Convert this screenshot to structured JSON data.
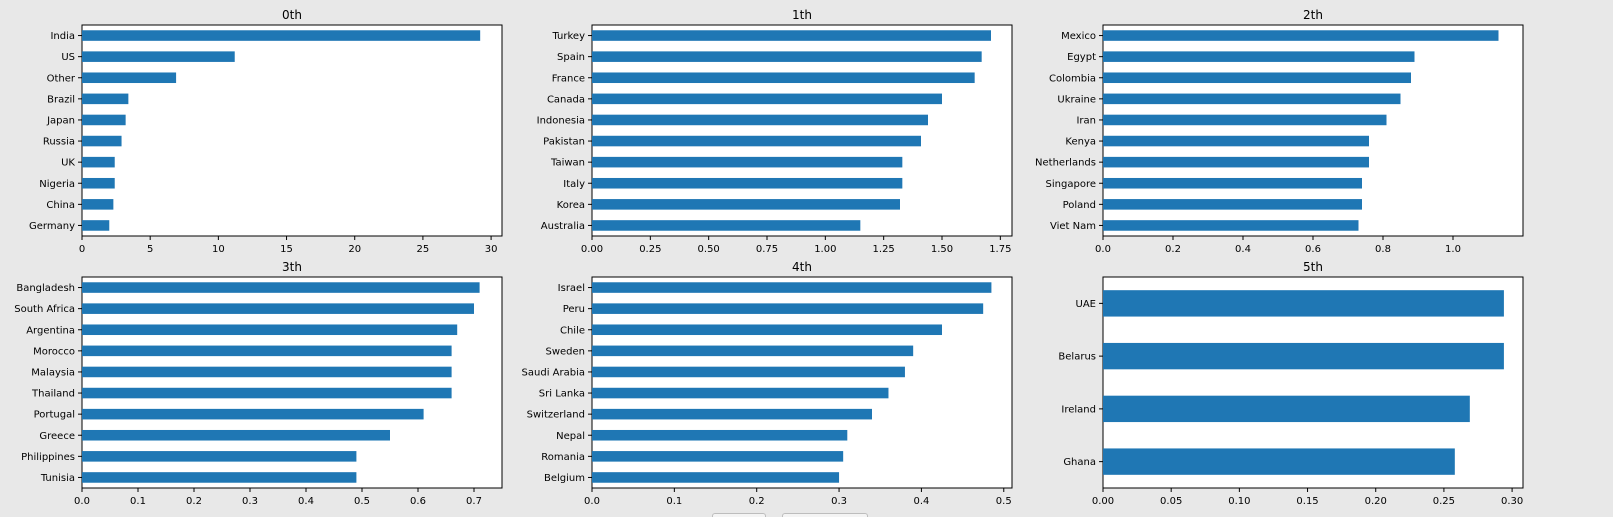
{
  "chart_data": [
    {
      "type": "bar",
      "orientation": "horizontal",
      "title": "0th",
      "categories": [
        "India",
        "US",
        "Other",
        "Brazil",
        "Japan",
        "Russia",
        "UK",
        "Nigeria",
        "China",
        "Germany"
      ],
      "values": [
        29.2,
        11.2,
        6.9,
        3.4,
        3.2,
        2.9,
        2.4,
        2.4,
        2.3,
        2.0
      ],
      "xlim": [
        0,
        30.8
      ],
      "xticks": [
        0,
        5,
        10,
        15,
        20,
        25,
        30
      ],
      "xtick_labels": [
        "0",
        "5",
        "10",
        "15",
        "20",
        "25",
        "30"
      ],
      "xlabel": "",
      "ylabel": "",
      "color": "#1f77b4",
      "grid": false
    },
    {
      "type": "bar",
      "orientation": "horizontal",
      "title": "1th",
      "categories": [
        "Turkey",
        "Spain",
        "France",
        "Canada",
        "Indonesia",
        "Pakistan",
        "Taiwan",
        "Italy",
        "Korea",
        "Australia"
      ],
      "values": [
        1.71,
        1.67,
        1.64,
        1.5,
        1.44,
        1.41,
        1.33,
        1.33,
        1.32,
        1.15
      ],
      "xlim": [
        0,
        1.8
      ],
      "xticks": [
        0,
        0.25,
        0.5,
        0.75,
        1.0,
        1.25,
        1.5,
        1.75
      ],
      "xtick_labels": [
        "0.00",
        "0.25",
        "0.50",
        "0.75",
        "1.00",
        "1.25",
        "1.50",
        "1.75"
      ],
      "xlabel": "",
      "ylabel": "",
      "color": "#1f77b4",
      "grid": false
    },
    {
      "type": "bar",
      "orientation": "horizontal",
      "title": "2th",
      "categories": [
        "Mexico",
        "Egypt",
        "Colombia",
        "Ukraine",
        "Iran",
        "Kenya",
        "Netherlands",
        "Singapore",
        "Poland",
        "Viet Nam"
      ],
      "values": [
        1.13,
        0.89,
        0.88,
        0.85,
        0.81,
        0.76,
        0.76,
        0.74,
        0.74,
        0.73
      ],
      "xlim": [
        0,
        1.2
      ],
      "xticks": [
        0,
        0.2,
        0.4,
        0.6,
        0.8,
        1.0
      ],
      "xtick_labels": [
        "0.0",
        "0.2",
        "0.4",
        "0.6",
        "0.8",
        "1.0"
      ],
      "xlabel": "",
      "ylabel": "",
      "color": "#1f77b4",
      "grid": false
    },
    {
      "type": "bar",
      "orientation": "horizontal",
      "title": "3th",
      "categories": [
        "Bangladesh",
        "South Africa",
        "Argentina",
        "Morocco",
        "Malaysia",
        "Thailand",
        "Portugal",
        "Greece",
        "Philippines",
        "Tunisia"
      ],
      "values": [
        0.71,
        0.7,
        0.67,
        0.66,
        0.66,
        0.66,
        0.61,
        0.55,
        0.49,
        0.49
      ],
      "xlim": [
        0,
        0.75
      ],
      "xticks": [
        0,
        0.1,
        0.2,
        0.3,
        0.4,
        0.5,
        0.6,
        0.7
      ],
      "xtick_labels": [
        "0.0",
        "0.1",
        "0.2",
        "0.3",
        "0.4",
        "0.5",
        "0.6",
        "0.7"
      ],
      "xlabel": "",
      "ylabel": "",
      "color": "#1f77b4",
      "grid": false
    },
    {
      "type": "bar",
      "orientation": "horizontal",
      "title": "4th",
      "categories": [
        "Israel",
        "Peru",
        "Chile",
        "Sweden",
        "Saudi Arabia",
        "Sri Lanka",
        "Switzerland",
        "Nepal",
        "Romania",
        "Belgium"
      ],
      "values": [
        0.485,
        0.475,
        0.425,
        0.39,
        0.38,
        0.36,
        0.34,
        0.31,
        0.305,
        0.3
      ],
      "xlim": [
        0,
        0.51
      ],
      "xticks": [
        0,
        0.1,
        0.2,
        0.3,
        0.4,
        0.5
      ],
      "xtick_labels": [
        "0.0",
        "0.1",
        "0.2",
        "0.3",
        "0.4",
        "0.5"
      ],
      "xlabel": "",
      "ylabel": "",
      "color": "#1f77b4",
      "grid": false
    },
    {
      "type": "bar",
      "orientation": "horizontal",
      "title": "5th",
      "categories": [
        "UAE",
        "Belarus",
        "Ireland",
        "Ghana"
      ],
      "values": [
        0.294,
        0.294,
        0.269,
        0.258
      ],
      "xlim": [
        0,
        0.308
      ],
      "xticks": [
        0,
        0.05,
        0.1,
        0.15,
        0.2,
        0.25,
        0.3
      ],
      "xtick_labels": [
        "0.00",
        "0.05",
        "0.10",
        "0.15",
        "0.20",
        "0.25",
        "0.30"
      ],
      "xlabel": "",
      "ylabel": "",
      "color": "#1f77b4",
      "grid": false
    }
  ]
}
